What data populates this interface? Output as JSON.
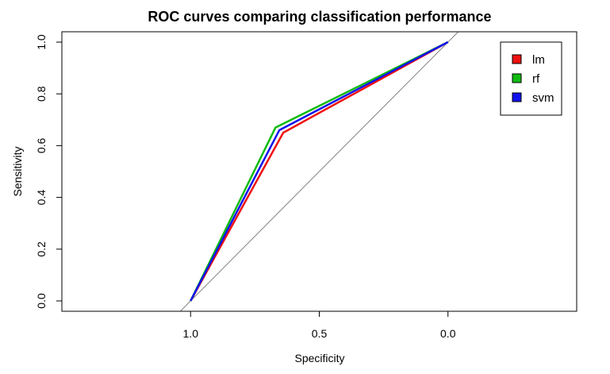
{
  "chart_data": {
    "type": "line",
    "title": "ROC curves comparing classification performance",
    "xlabel": "Specificity",
    "ylabel": "Sensitivity",
    "x_reversed": true,
    "xlim": [
      1.5,
      -0.5
    ],
    "ylim": [
      -0.04,
      1.04
    ],
    "x_ticks": [
      1.0,
      0.5,
      0.0
    ],
    "x_tick_labels": [
      "1.0",
      "0.5",
      "0.0"
    ],
    "y_ticks": [
      0.0,
      0.2,
      0.4,
      0.6,
      0.8,
      1.0
    ],
    "y_tick_labels": [
      "0.0",
      "0.2",
      "0.4",
      "0.6",
      "0.8",
      "1.0"
    ],
    "reference_line": {
      "description": "diagonal",
      "color": "#808080"
    },
    "legend_placement": "top-right",
    "series": [
      {
        "name": "lm",
        "color": "#ee1111",
        "x": [
          1.0,
          0.64,
          0.0
        ],
        "y": [
          0.0,
          0.65,
          1.0
        ]
      },
      {
        "name": "rf",
        "color": "#11bb11",
        "x": [
          1.0,
          0.67,
          0.0
        ],
        "y": [
          0.0,
          0.67,
          1.0
        ]
      },
      {
        "name": "svm",
        "color": "#1111ee",
        "x": [
          1.0,
          0.655,
          0.0
        ],
        "y": [
          0.0,
          0.66,
          1.0
        ]
      }
    ]
  }
}
